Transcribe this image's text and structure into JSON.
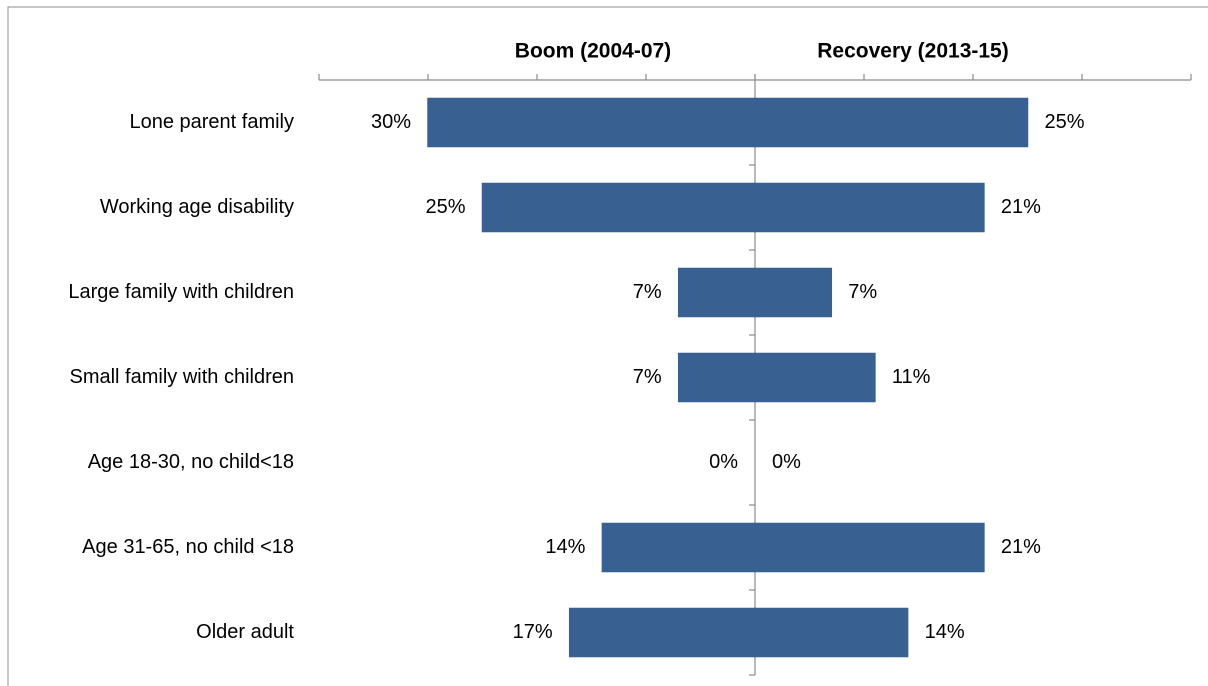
{
  "chart_data": {
    "type": "butterfly-bar",
    "categories": [
      "Lone parent family",
      "Working age disability",
      "Large family with children",
      "Small family with children",
      "Age 18-30, no child<18",
      "Age 31-65, no child <18",
      "Older adult"
    ],
    "series": [
      {
        "name": "Boom (2004-07)",
        "color": "#386192",
        "values": [
          30,
          25,
          7,
          7,
          0,
          14,
          17
        ],
        "value_labels": [
          "30%",
          "25%",
          "7%",
          "7%",
          "0%",
          "14%",
          "17%"
        ]
      },
      {
        "name": "Recovery (2013-15)",
        "color": "#386192",
        "values": [
          25,
          21,
          7,
          11,
          0,
          21,
          14
        ],
        "value_labels": [
          "25%",
          "21%",
          "7%",
          "11%",
          "0%",
          "21%",
          "14%"
        ]
      }
    ],
    "xlim": [
      0,
      40
    ],
    "xticks": [
      0,
      10,
      20,
      30,
      40
    ]
  }
}
